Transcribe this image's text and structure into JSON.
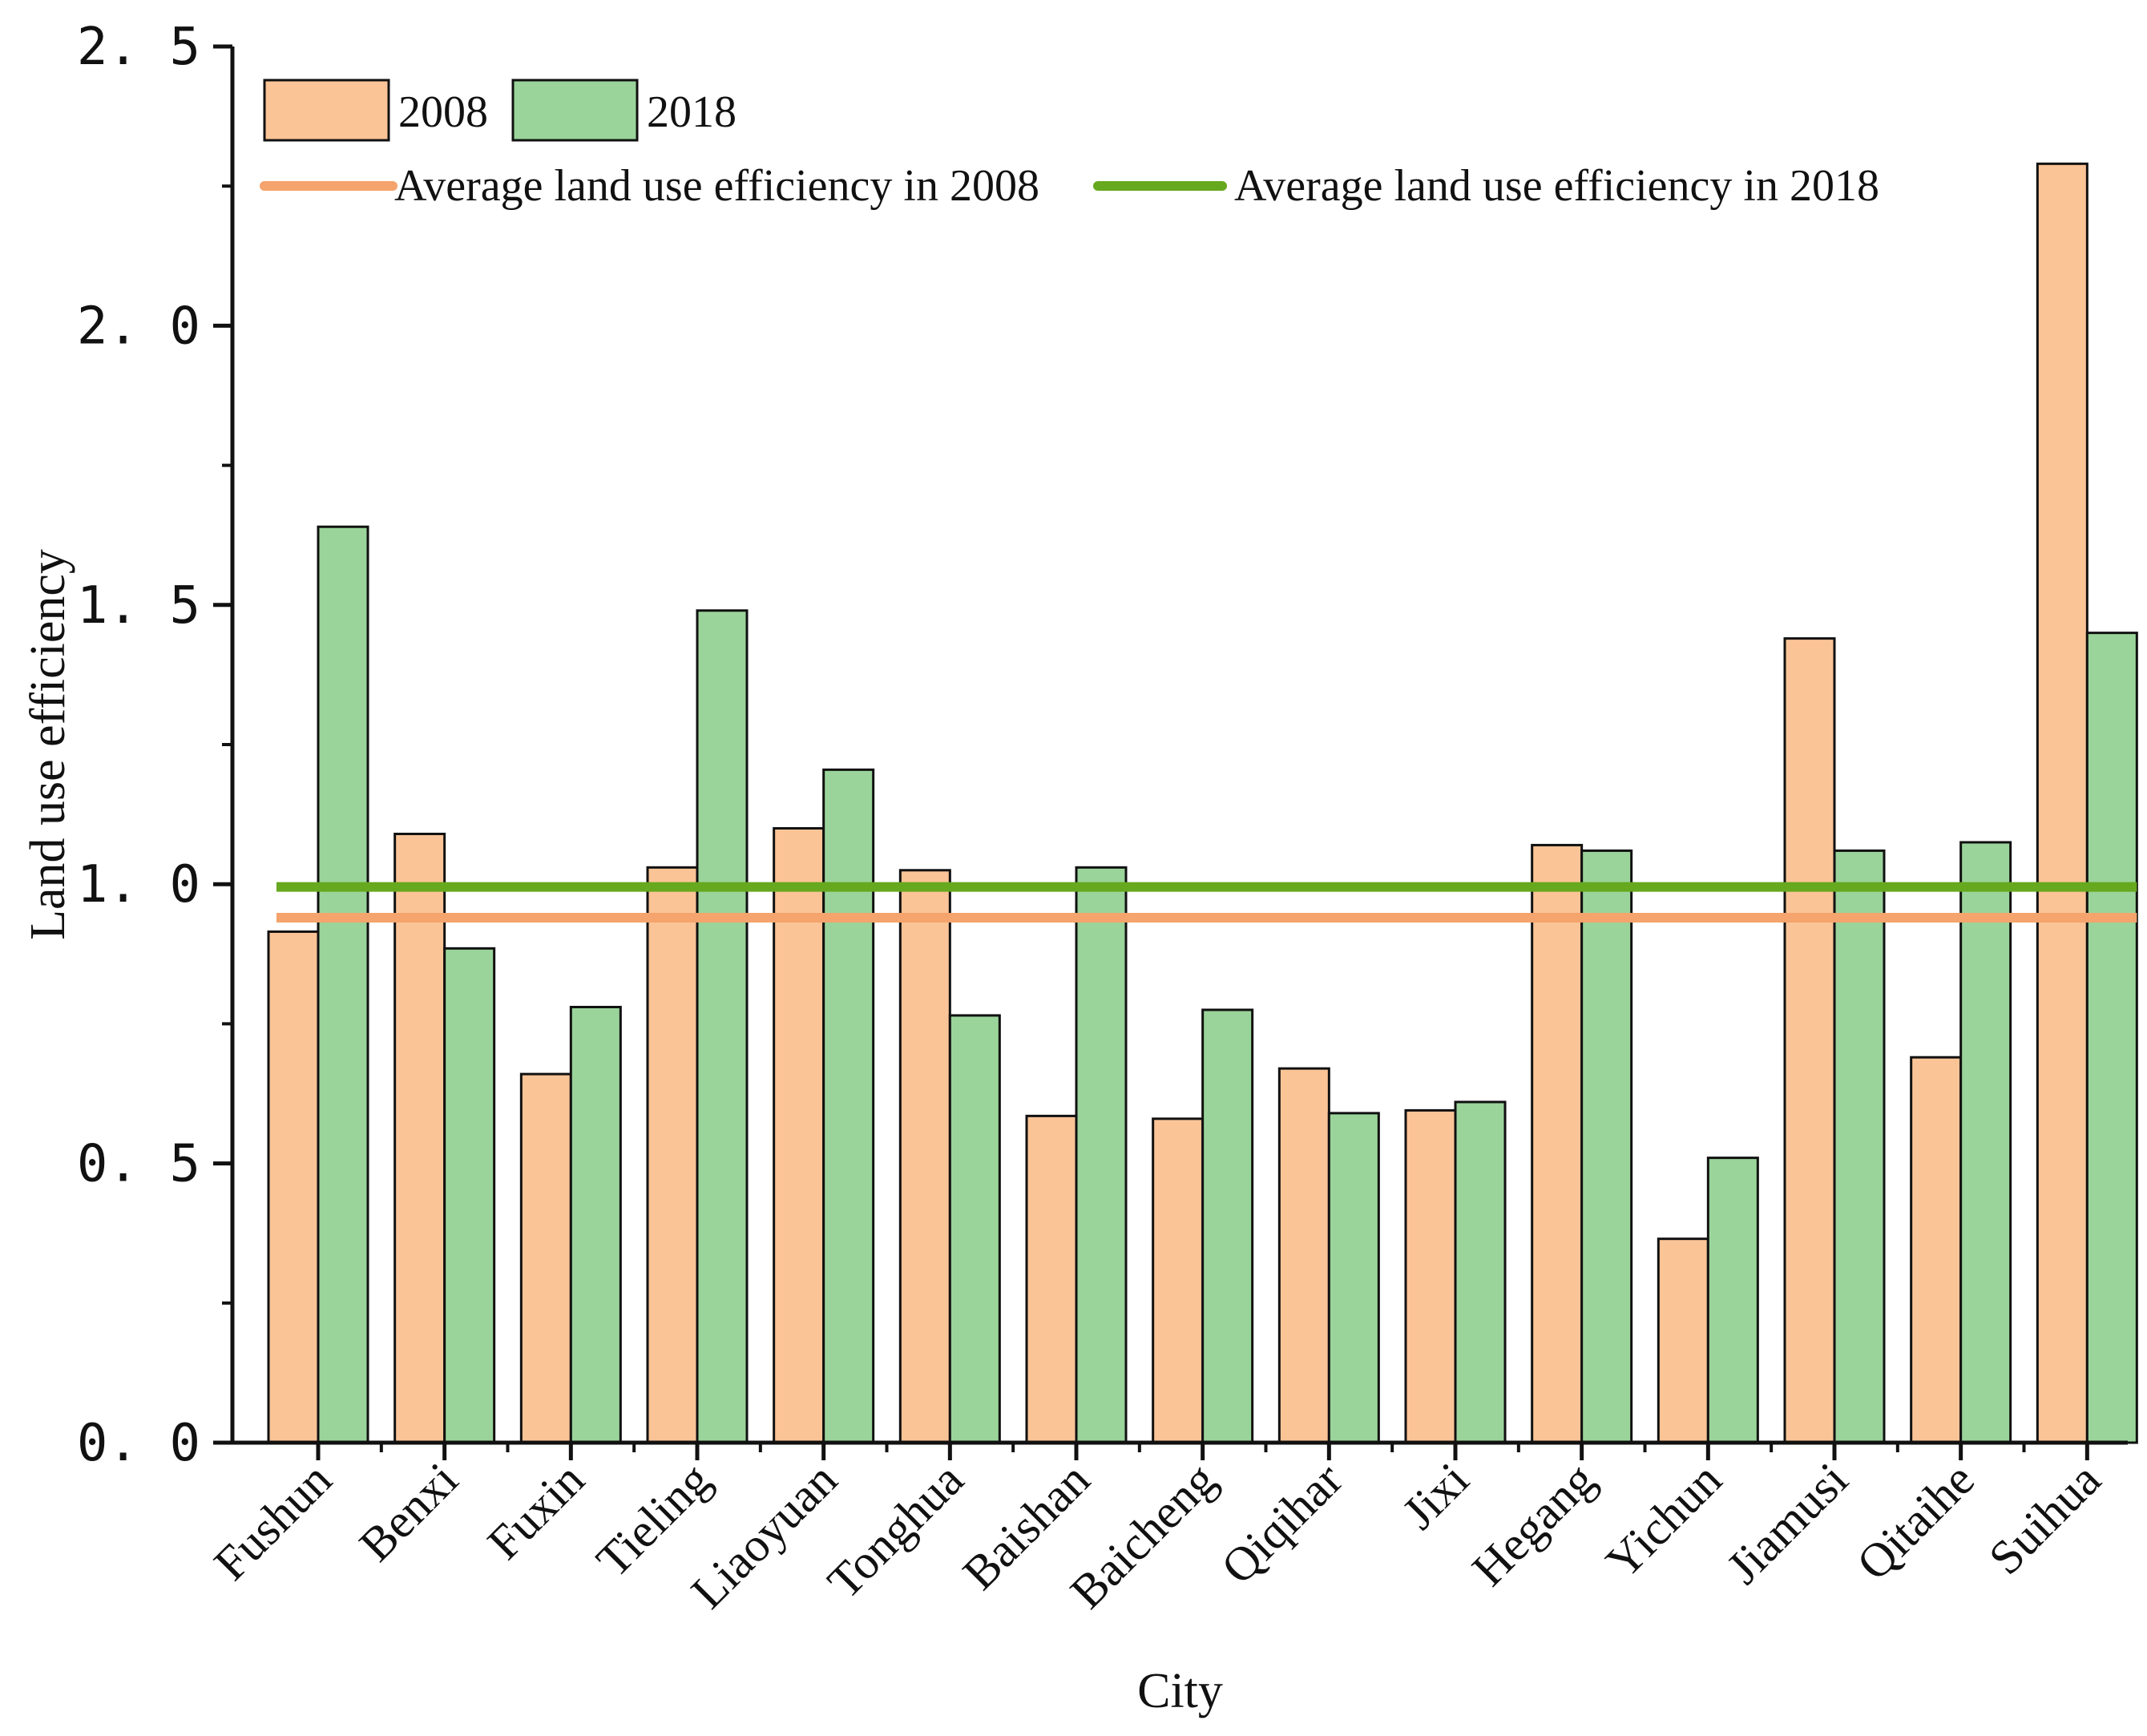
{
  "chart_data": {
    "type": "bar",
    "categories": [
      "Fushun",
      "Benxi",
      "Fuxin",
      "Tieling",
      "Liaoyuan",
      "Tonghua",
      "Baishan",
      "Baicheng",
      "Qiqihar",
      "Jixi",
      "Hegang",
      "Yichun",
      "Jiamusi",
      "Qitaihe",
      "Suihua"
    ],
    "series": [
      {
        "name": "2008",
        "color": "#fbc496",
        "values": [
          0.915,
          1.09,
          0.66,
          1.03,
          1.1,
          1.025,
          0.585,
          0.58,
          0.67,
          0.595,
          1.07,
          0.365,
          1.44,
          0.69,
          2.29
        ]
      },
      {
        "name": "2018",
        "color": "#9ad49a",
        "values": [
          1.64,
          0.885,
          0.78,
          1.49,
          1.205,
          0.765,
          1.03,
          0.775,
          0.59,
          0.61,
          1.06,
          0.51,
          1.06,
          1.075,
          1.45
        ]
      }
    ],
    "reference_lines": [
      {
        "name": "Average land use efficiency in 2008",
        "value": 0.94,
        "color": "#f4a46c"
      },
      {
        "name": "Average land use efficiency in 2018",
        "value": 0.995,
        "color": "#66a81e"
      }
    ],
    "xlabel": "City",
    "ylabel": "Land use efficiency",
    "ylim": [
      0,
      2.5
    ],
    "yticks": [
      "0. 0",
      "0. 5",
      "1. 0",
      "1. 5",
      "2. 0",
      "2. 5"
    ],
    "ytick_values": [
      0,
      0.5,
      1.0,
      1.5,
      2.0,
      2.5
    ],
    "grid": false,
    "legend_position": "top-left"
  }
}
